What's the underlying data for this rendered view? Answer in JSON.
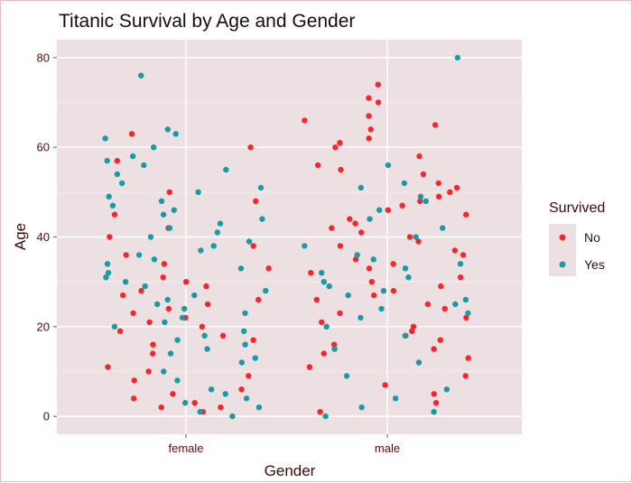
{
  "chart_data": {
    "type": "scatter",
    "title": "Titanic Survival by Age and Gender",
    "xlabel": "Gender",
    "ylabel": "Age",
    "categories": [
      "female",
      "male"
    ],
    "ylim": [
      -4,
      84
    ],
    "yticks": [
      0,
      20,
      40,
      60,
      80
    ],
    "jitter": true,
    "grid": true,
    "legend": {
      "title": "Survived",
      "position": "right",
      "entries": [
        "No",
        "Yes"
      ]
    },
    "series": [
      {
        "name": "No",
        "color": "#f8262a",
        "points": [
          [
            "female",
            60
          ],
          [
            "female",
            48
          ],
          [
            "female",
            45
          ],
          [
            "female",
            42
          ],
          [
            "female",
            38
          ],
          [
            "female",
            36
          ],
          [
            "female",
            34
          ],
          [
            "female",
            30
          ],
          [
            "female",
            29
          ],
          [
            "female",
            28
          ],
          [
            "female",
            27
          ],
          [
            "female",
            26
          ],
          [
            "female",
            24
          ],
          [
            "female",
            23
          ],
          [
            "female",
            22
          ],
          [
            "female",
            21
          ],
          [
            "female",
            19
          ],
          [
            "female",
            18
          ],
          [
            "female",
            16
          ],
          [
            "female",
            14
          ],
          [
            "female",
            11
          ],
          [
            "female",
            9
          ],
          [
            "female",
            8
          ],
          [
            "female",
            6
          ],
          [
            "female",
            5
          ],
          [
            "female",
            4
          ],
          [
            "female",
            3
          ],
          [
            "female",
            2
          ],
          [
            "female",
            2
          ],
          [
            "female",
            1
          ],
          [
            "female",
            57
          ],
          [
            "female",
            63
          ],
          [
            "female",
            50
          ],
          [
            "female",
            40
          ],
          [
            "female",
            33
          ],
          [
            "female",
            31
          ],
          [
            "female",
            25
          ],
          [
            "female",
            20
          ],
          [
            "female",
            17
          ],
          [
            "female",
            10
          ],
          [
            "male",
            71
          ],
          [
            "male",
            70
          ],
          [
            "male",
            67
          ],
          [
            "male",
            65
          ],
          [
            "male",
            64
          ],
          [
            "male",
            62
          ],
          [
            "male",
            61
          ],
          [
            "male",
            60
          ],
          [
            "male",
            58
          ],
          [
            "male",
            56
          ],
          [
            "male",
            55
          ],
          [
            "male",
            54
          ],
          [
            "male",
            52
          ],
          [
            "male",
            51
          ],
          [
            "male",
            50
          ],
          [
            "male",
            49
          ],
          [
            "male",
            48
          ],
          [
            "male",
            47
          ],
          [
            "male",
            46
          ],
          [
            "male",
            45
          ],
          [
            "male",
            44
          ],
          [
            "male",
            43
          ],
          [
            "male",
            42
          ],
          [
            "male",
            41
          ],
          [
            "male",
            40
          ],
          [
            "male",
            39
          ],
          [
            "male",
            38
          ],
          [
            "male",
            37
          ],
          [
            "male",
            36
          ],
          [
            "male",
            35
          ],
          [
            "male",
            34
          ],
          [
            "male",
            33
          ],
          [
            "male",
            32
          ],
          [
            "male",
            31
          ],
          [
            "male",
            30
          ],
          [
            "male",
            29
          ],
          [
            "male",
            28
          ],
          [
            "male",
            27
          ],
          [
            "male",
            26
          ],
          [
            "male",
            25
          ],
          [
            "male",
            24
          ],
          [
            "male",
            23
          ],
          [
            "male",
            22
          ],
          [
            "male",
            21
          ],
          [
            "male",
            20
          ],
          [
            "male",
            19
          ],
          [
            "male",
            18
          ],
          [
            "male",
            17
          ],
          [
            "male",
            16
          ],
          [
            "male",
            15
          ],
          [
            "male",
            14
          ],
          [
            "male",
            13
          ],
          [
            "male",
            11
          ],
          [
            "male",
            9
          ],
          [
            "male",
            7
          ],
          [
            "male",
            5
          ],
          [
            "male",
            3
          ],
          [
            "male",
            1
          ],
          [
            "male",
            74
          ],
          [
            "male",
            66
          ]
        ]
      },
      {
        "name": "Yes",
        "color": "#1a9aa6",
        "points": [
          [
            "female",
            76
          ],
          [
            "female",
            63
          ],
          [
            "female",
            62
          ],
          [
            "female",
            60
          ],
          [
            "female",
            58
          ],
          [
            "female",
            56
          ],
          [
            "female",
            55
          ],
          [
            "female",
            54
          ],
          [
            "female",
            52
          ],
          [
            "female",
            51
          ],
          [
            "female",
            50
          ],
          [
            "female",
            49
          ],
          [
            "female",
            48
          ],
          [
            "female",
            47
          ],
          [
            "female",
            46
          ],
          [
            "female",
            45
          ],
          [
            "female",
            44
          ],
          [
            "female",
            43
          ],
          [
            "female",
            42
          ],
          [
            "female",
            41
          ],
          [
            "female",
            40
          ],
          [
            "female",
            39
          ],
          [
            "female",
            38
          ],
          [
            "female",
            37
          ],
          [
            "female",
            36
          ],
          [
            "female",
            35
          ],
          [
            "female",
            34
          ],
          [
            "female",
            33
          ],
          [
            "female",
            32
          ],
          [
            "female",
            31
          ],
          [
            "female",
            30
          ],
          [
            "female",
            29
          ],
          [
            "female",
            28
          ],
          [
            "female",
            27
          ],
          [
            "female",
            26
          ],
          [
            "female",
            25
          ],
          [
            "female",
            24
          ],
          [
            "female",
            23
          ],
          [
            "female",
            22
          ],
          [
            "female",
            21
          ],
          [
            "female",
            20
          ],
          [
            "female",
            19
          ],
          [
            "female",
            18
          ],
          [
            "female",
            17
          ],
          [
            "female",
            16
          ],
          [
            "female",
            15
          ],
          [
            "female",
            14
          ],
          [
            "female",
            13
          ],
          [
            "female",
            12
          ],
          [
            "female",
            10
          ],
          [
            "female",
            8
          ],
          [
            "female",
            6
          ],
          [
            "female",
            5
          ],
          [
            "female",
            4
          ],
          [
            "female",
            3
          ],
          [
            "female",
            2
          ],
          [
            "female",
            1
          ],
          [
            "female",
            0
          ],
          [
            "female",
            64
          ],
          [
            "female",
            57
          ],
          [
            "male",
            80
          ],
          [
            "male",
            56
          ],
          [
            "male",
            52
          ],
          [
            "male",
            51
          ],
          [
            "male",
            49
          ],
          [
            "male",
            48
          ],
          [
            "male",
            46
          ],
          [
            "male",
            44
          ],
          [
            "male",
            42
          ],
          [
            "male",
            40
          ],
          [
            "male",
            38
          ],
          [
            "male",
            36
          ],
          [
            "male",
            35
          ],
          [
            "male",
            34
          ],
          [
            "male",
            33
          ],
          [
            "male",
            32
          ],
          [
            "male",
            31
          ],
          [
            "male",
            30
          ],
          [
            "male",
            29
          ],
          [
            "male",
            28
          ],
          [
            "male",
            27
          ],
          [
            "male",
            26
          ],
          [
            "male",
            25
          ],
          [
            "male",
            24
          ],
          [
            "male",
            23
          ],
          [
            "male",
            22
          ],
          [
            "male",
            20
          ],
          [
            "male",
            18
          ],
          [
            "male",
            15
          ],
          [
            "male",
            12
          ],
          [
            "male",
            9
          ],
          [
            "male",
            6
          ],
          [
            "male",
            4
          ],
          [
            "male",
            2
          ],
          [
            "male",
            1
          ],
          [
            "male",
            0
          ]
        ]
      }
    ]
  }
}
